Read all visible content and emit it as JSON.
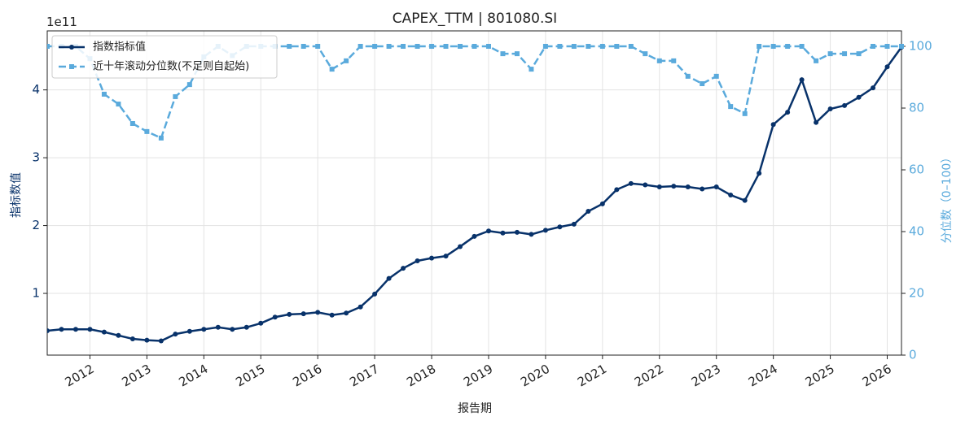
{
  "chart_data": {
    "type": "line",
    "title": "CAPEX_TTM | 801080.SI",
    "x_label": "报告期",
    "y_label": "指标数值",
    "y2_label": "分位数（0–100）",
    "y_offset_label": "1e11",
    "legend": "upper left",
    "grid": true,
    "x": [
      2011.25,
      2011.5,
      2011.75,
      2012,
      2012.25,
      2012.5,
      2012.75,
      2013,
      2013.25,
      2013.5,
      2013.75,
      2014,
      2014.25,
      2014.5,
      2014.75,
      2015,
      2015.25,
      2015.5,
      2015.75,
      2016,
      2016.25,
      2016.5,
      2016.75,
      2017,
      2017.25,
      2017.5,
      2017.75,
      2018,
      2018.25,
      2018.5,
      2018.75,
      2019,
      2019.25,
      2019.5,
      2019.75,
      2020,
      2020.25,
      2020.5,
      2020.75,
      2021,
      2021.25,
      2021.5,
      2021.75,
      2022,
      2022.25,
      2022.5,
      2022.75,
      2023,
      2023.25,
      2023.5,
      2023.75,
      2024,
      2024.25,
      2024.5,
      2024.75,
      2025,
      2025.25,
      2025.5,
      2025.75,
      2026,
      2026.25
    ],
    "xlim": [
      2011.25,
      2026.25
    ],
    "xticks": [
      2012,
      2013,
      2014,
      2015,
      2016,
      2017,
      2018,
      2019,
      2020,
      2021,
      2022,
      2023,
      2024,
      2025,
      2026
    ],
    "ylim": [
      0.09,
      4.87
    ],
    "yticks": [
      1,
      2,
      3,
      4
    ],
    "y2lim": [
      0,
      105
    ],
    "y2ticks": [
      0,
      20,
      40,
      60,
      80,
      100
    ],
    "series": [
      {
        "name": "指数指标值",
        "color": "#08326a",
        "marker": "circle",
        "dash": false,
        "values": [
          0.45,
          0.47,
          0.47,
          0.47,
          0.43,
          0.38,
          0.33,
          0.31,
          0.3,
          0.4,
          0.44,
          0.47,
          0.5,
          0.47,
          0.5,
          0.56,
          0.65,
          0.69,
          0.7,
          0.72,
          0.68,
          0.71,
          0.8,
          0.99,
          1.22,
          1.37,
          1.48,
          1.52,
          1.55,
          1.69,
          1.84,
          1.92,
          1.89,
          1.9,
          1.87,
          1.93,
          1.98,
          2.02,
          2.21,
          2.32,
          2.53,
          2.62,
          2.6,
          2.57,
          2.58,
          2.57,
          2.54,
          2.57,
          2.45,
          2.37,
          2.77,
          3.49,
          3.67,
          4.15,
          3.52,
          3.72,
          3.77,
          3.89,
          4.03,
          4.34,
          4.63
        ]
      },
      {
        "name": "近十年滚动分位数(不足则自起始)",
        "color": "#5aaadc",
        "marker": "square",
        "dash": true,
        "axis": "y2",
        "values": [
          100,
          100,
          100,
          96,
          84.5,
          81.3,
          75,
          72.4,
          70.3,
          83.7,
          87.6,
          96.6,
          100,
          97,
          100,
          100,
          100,
          100,
          100,
          100,
          92.6,
          95.3,
          100,
          100,
          100,
          100,
          100,
          100,
          100,
          100,
          100,
          100,
          97.6,
          97.6,
          92.6,
          100,
          100,
          100,
          100,
          100,
          100,
          100,
          97.6,
          95.3,
          95.3,
          90.3,
          87.9,
          90.3,
          80.5,
          78.2,
          100,
          100,
          100,
          100,
          95.3,
          97.6,
          97.6,
          97.6,
          100,
          100,
          100
        ]
      }
    ]
  }
}
